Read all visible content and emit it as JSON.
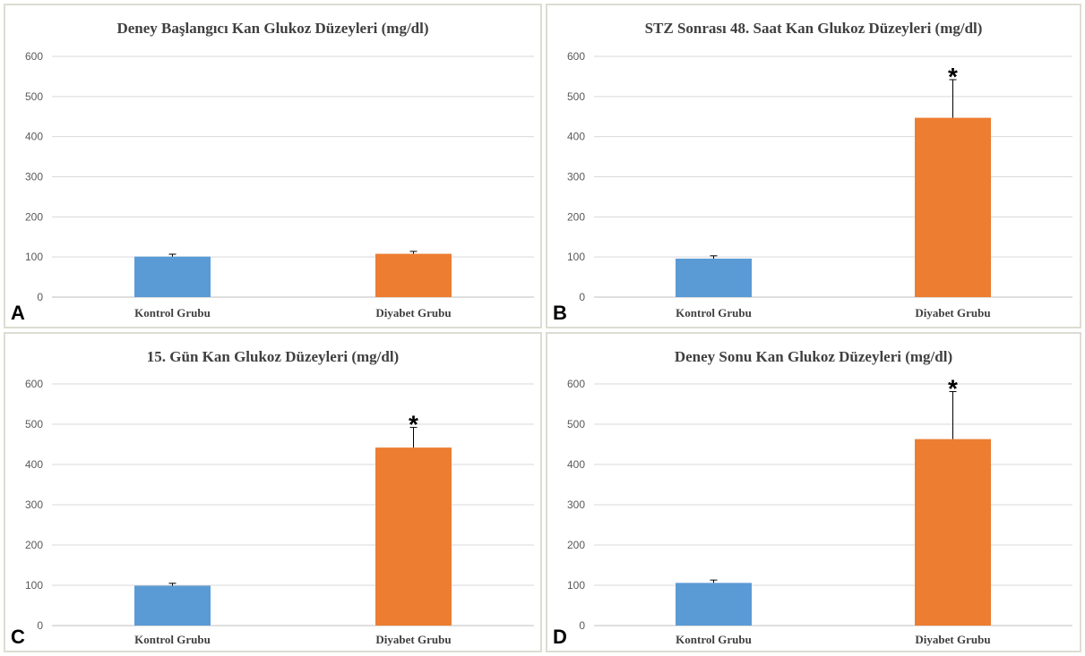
{
  "chart_data": [
    {
      "panel": "A",
      "type": "bar",
      "title": "Deney Başlangıcı Kan Glukoz Düzeyleri (mg/dl)",
      "categories": [
        "Kontrol Grubu",
        "Diyabet Grubu"
      ],
      "values": [
        101,
        108
      ],
      "errors": [
        6,
        6
      ],
      "colors": [
        "#5b9bd5",
        "#ed7d31"
      ],
      "significance": [
        "",
        ""
      ],
      "ylim": [
        0,
        600
      ],
      "yticks": [
        "0",
        "100",
        "200",
        "300",
        "400",
        "500",
        "600"
      ],
      "grid": true
    },
    {
      "panel": "B",
      "type": "bar",
      "title": "STZ Sonrası 48. Saat Kan Glukoz Düzeyleri (mg/dl)",
      "categories": [
        "Kontrol Grubu",
        "Diyabet Grubu"
      ],
      "values": [
        96,
        447
      ],
      "errors": [
        7,
        95
      ],
      "colors": [
        "#5b9bd5",
        "#ed7d31"
      ],
      "significance": [
        "",
        "*"
      ],
      "ylim": [
        0,
        600
      ],
      "yticks": [
        "0",
        "100",
        "200",
        "300",
        "400",
        "500",
        "600"
      ],
      "grid": true
    },
    {
      "panel": "C",
      "type": "bar",
      "title": "15. Gün Kan Glukoz Düzeyleri (mg/dl)",
      "categories": [
        "Kontrol Grubu",
        "Diyabet Grubu"
      ],
      "values": [
        99,
        442
      ],
      "errors": [
        6,
        50
      ],
      "colors": [
        "#5b9bd5",
        "#ed7d31"
      ],
      "significance": [
        "",
        "*"
      ],
      "ylim": [
        0,
        600
      ],
      "yticks": [
        "0",
        "100",
        "200",
        "300",
        "400",
        "500",
        "600"
      ],
      "grid": true
    },
    {
      "panel": "D",
      "type": "bar",
      "title": "Deney Sonu Kan Glukoz Düzeyleri (mg/dl)",
      "categories": [
        "Kontrol Grubu",
        "Diyabet Grubu"
      ],
      "values": [
        106,
        463
      ],
      "errors": [
        7,
        118
      ],
      "colors": [
        "#5b9bd5",
        "#ed7d31"
      ],
      "significance": [
        "",
        "*"
      ],
      "ylim": [
        0,
        600
      ],
      "yticks": [
        "0",
        "100",
        "200",
        "300",
        "400",
        "500",
        "600"
      ],
      "grid": true
    }
  ]
}
